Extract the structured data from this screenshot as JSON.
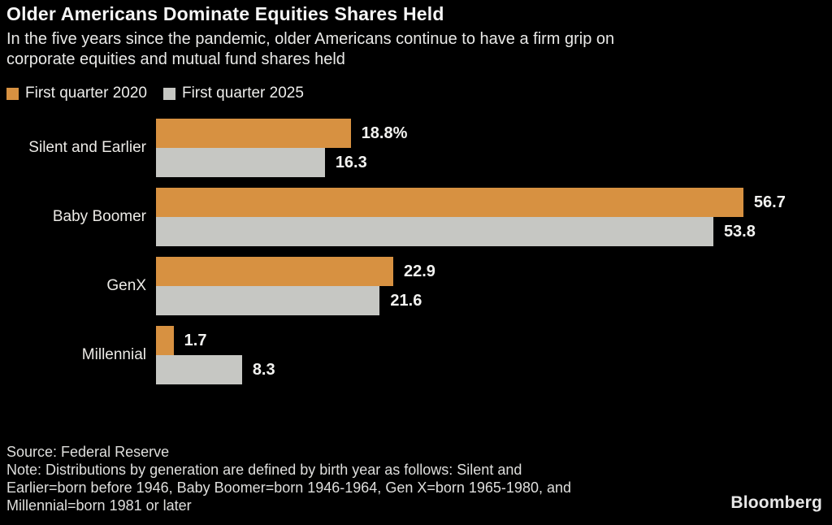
{
  "header": {
    "title": "Older Americans Dominate Equities Shares Held",
    "subtitle_lines": [
      "In the five years since the pandemic, older Americans continue to have a firm grip on",
      "corporate equities and mutual fund shares held"
    ]
  },
  "colors": {
    "background": "#000000",
    "series_2020": "#d79141",
    "series_2025": "#c6c7c3",
    "text": "#f0f0f0"
  },
  "chart_data": {
    "type": "bar",
    "orientation": "horizontal",
    "title": "Older Americans Dominate Equities Shares Held",
    "xlabel": "",
    "ylabel": "",
    "xlim": [
      0,
      60
    ],
    "grid": false,
    "legend_position": "top-left",
    "unit": "% share of corporate equities and mutual fund shares held",
    "categories": [
      "Silent and Earlier",
      "Baby Boomer",
      "GenX",
      "Millennial"
    ],
    "series": [
      {
        "name": "First quarter 2020",
        "color": "#d79141",
        "values": [
          18.8,
          56.7,
          22.9,
          1.7
        ],
        "labels": [
          "18.8%",
          "56.7",
          "22.9",
          "1.7"
        ]
      },
      {
        "name": "First quarter 2025",
        "color": "#c6c7c3",
        "values": [
          16.3,
          53.8,
          21.6,
          8.3
        ],
        "labels": [
          "16.3",
          "53.8",
          "21.6",
          "8.3"
        ]
      }
    ]
  },
  "footer": {
    "source": "Source: Federal Reserve",
    "note_lines": [
      "Note: Distributions by generation are defined by birth year as follows: Silent and",
      "Earlier=born before 1946, Baby Boomer=born 1946-1964, Gen X=born 1965-1980, and",
      "Millennial=born 1981 or later"
    ],
    "brand": "Bloomberg"
  }
}
